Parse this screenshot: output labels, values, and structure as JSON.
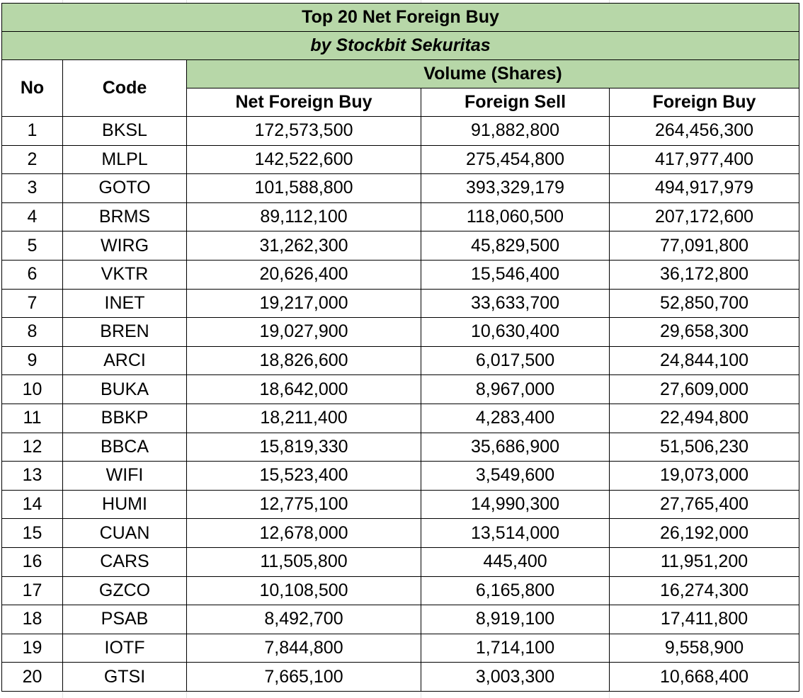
{
  "title": "Top 20 Net Foreign Buy",
  "subtitle": "by Stockbit Sekuritas",
  "headers": {
    "no": "No",
    "code": "Code",
    "volume": "Volume (Shares)",
    "net_foreign_buy": "Net Foreign Buy",
    "foreign_sell": "Foreign Sell",
    "foreign_buy": "Foreign Buy"
  },
  "rows": [
    {
      "no": "1",
      "code": "BKSL",
      "net": "172,573,500",
      "sell": "91,882,800",
      "buy": "264,456,300"
    },
    {
      "no": "2",
      "code": "MLPL",
      "net": "142,522,600",
      "sell": "275,454,800",
      "buy": "417,977,400"
    },
    {
      "no": "3",
      "code": "GOTO",
      "net": "101,588,800",
      "sell": "393,329,179",
      "buy": "494,917,979"
    },
    {
      "no": "4",
      "code": "BRMS",
      "net": "89,112,100",
      "sell": "118,060,500",
      "buy": "207,172,600"
    },
    {
      "no": "5",
      "code": "WIRG",
      "net": "31,262,300",
      "sell": "45,829,500",
      "buy": "77,091,800"
    },
    {
      "no": "6",
      "code": "VKTR",
      "net": "20,626,400",
      "sell": "15,546,400",
      "buy": "36,172,800"
    },
    {
      "no": "7",
      "code": "INET",
      "net": "19,217,000",
      "sell": "33,633,700",
      "buy": "52,850,700"
    },
    {
      "no": "8",
      "code": "BREN",
      "net": "19,027,900",
      "sell": "10,630,400",
      "buy": "29,658,300"
    },
    {
      "no": "9",
      "code": "ARCI",
      "net": "18,826,600",
      "sell": "6,017,500",
      "buy": "24,844,100"
    },
    {
      "no": "10",
      "code": "BUKA",
      "net": "18,642,000",
      "sell": "8,967,000",
      "buy": "27,609,000"
    },
    {
      "no": "11",
      "code": "BBKP",
      "net": "18,211,400",
      "sell": "4,283,400",
      "buy": "22,494,800"
    },
    {
      "no": "12",
      "code": "BBCA",
      "net": "15,819,330",
      "sell": "35,686,900",
      "buy": "51,506,230"
    },
    {
      "no": "13",
      "code": "WIFI",
      "net": "15,523,400",
      "sell": "3,549,600",
      "buy": "19,073,000"
    },
    {
      "no": "14",
      "code": "HUMI",
      "net": "12,775,100",
      "sell": "14,990,300",
      "buy": "27,765,400"
    },
    {
      "no": "15",
      "code": "CUAN",
      "net": "12,678,000",
      "sell": "13,514,000",
      "buy": "26,192,000"
    },
    {
      "no": "16",
      "code": "CARS",
      "net": "11,505,800",
      "sell": "445,400",
      "buy": "11,951,200"
    },
    {
      "no": "17",
      "code": "GZCO",
      "net": "10,108,500",
      "sell": "6,165,800",
      "buy": "16,274,300"
    },
    {
      "no": "18",
      "code": "PSAB",
      "net": "8,492,700",
      "sell": "8,919,100",
      "buy": "17,411,800"
    },
    {
      "no": "19",
      "code": "IOTF",
      "net": "7,844,800",
      "sell": "1,714,100",
      "buy": "9,558,900"
    },
    {
      "no": "20",
      "code": "GTSI",
      "net": "7,665,100",
      "sell": "3,003,300",
      "buy": "10,668,400"
    }
  ],
  "colors": {
    "header_fill": "#b7d7a8",
    "border": "#000000",
    "background": "#ffffff"
  }
}
